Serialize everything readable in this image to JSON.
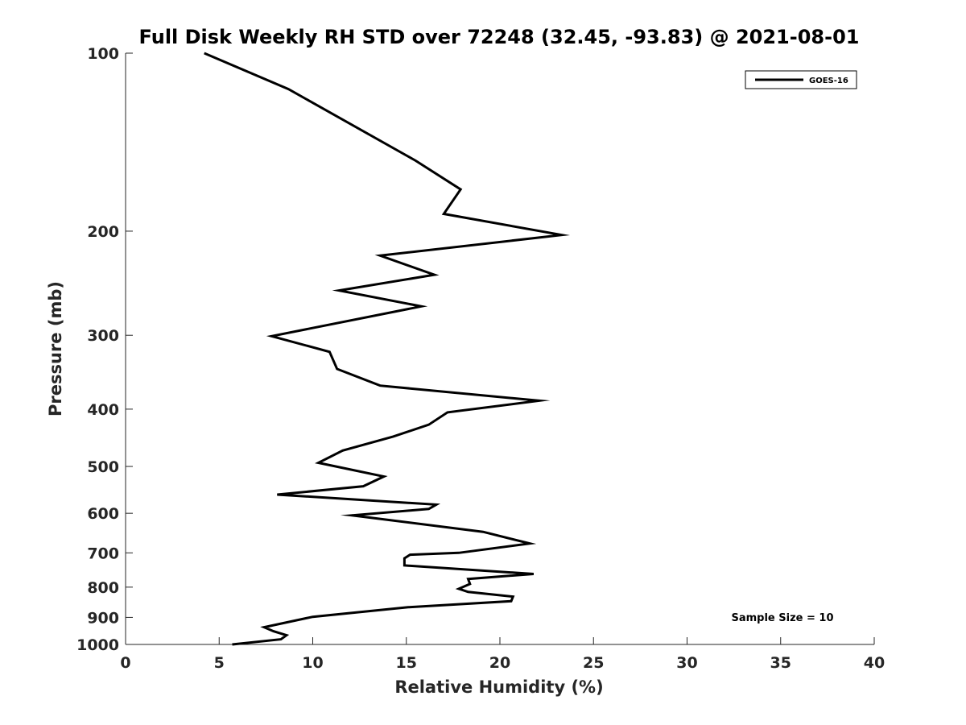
{
  "chart_data": {
    "type": "line",
    "title": "Full Disk Weekly RH STD over 72248 (32.45, -93.83) @ 2021-08-01",
    "xlabel": "Relative Humidity (%)",
    "ylabel": "Pressure (mb)",
    "xlim": [
      0,
      40
    ],
    "ylim": [
      100,
      1000
    ],
    "yscale": "log",
    "yaxis_reversed": true,
    "grid": false,
    "legend_position": "top-right",
    "xticks": [
      0,
      5,
      10,
      15,
      20,
      25,
      30,
      35,
      40
    ],
    "yticks": [
      100,
      200,
      300,
      400,
      500,
      600,
      700,
      800,
      900,
      1000
    ],
    "series": [
      {
        "name": "GOES-16",
        "color": "#000000",
        "x": [
          4.2,
          8.7,
          15.5,
          17.9,
          17.0,
          23.3,
          13.6,
          16.5,
          11.4,
          15.8,
          7.8,
          10.9,
          11.3,
          13.6,
          22.1,
          17.2,
          16.2,
          14.3,
          11.6,
          10.3,
          13.8,
          12.7,
          8.1,
          16.6,
          16.2,
          12.1,
          19.1,
          21.6,
          17.8,
          15.2,
          14.9,
          14.9,
          21.8,
          18.3,
          18.4,
          17.8,
          18.3,
          20.7,
          20.6,
          15.1,
          10.0,
          7.4,
          7.9,
          8.6,
          8.3,
          5.7
        ],
        "y": [
          100,
          115,
          152,
          170,
          187,
          203,
          220,
          237,
          252,
          268,
          301,
          320,
          342,
          365,
          387,
          405,
          425,
          445,
          470,
          493,
          520,
          540,
          558,
          580,
          590,
          605,
          645,
          675,
          700,
          705,
          715,
          735,
          760,
          775,
          790,
          805,
          815,
          830,
          845,
          865,
          898,
          935,
          950,
          965,
          980,
          1000
        ]
      }
    ],
    "annotations": [
      "Sample Size = 10"
    ]
  }
}
